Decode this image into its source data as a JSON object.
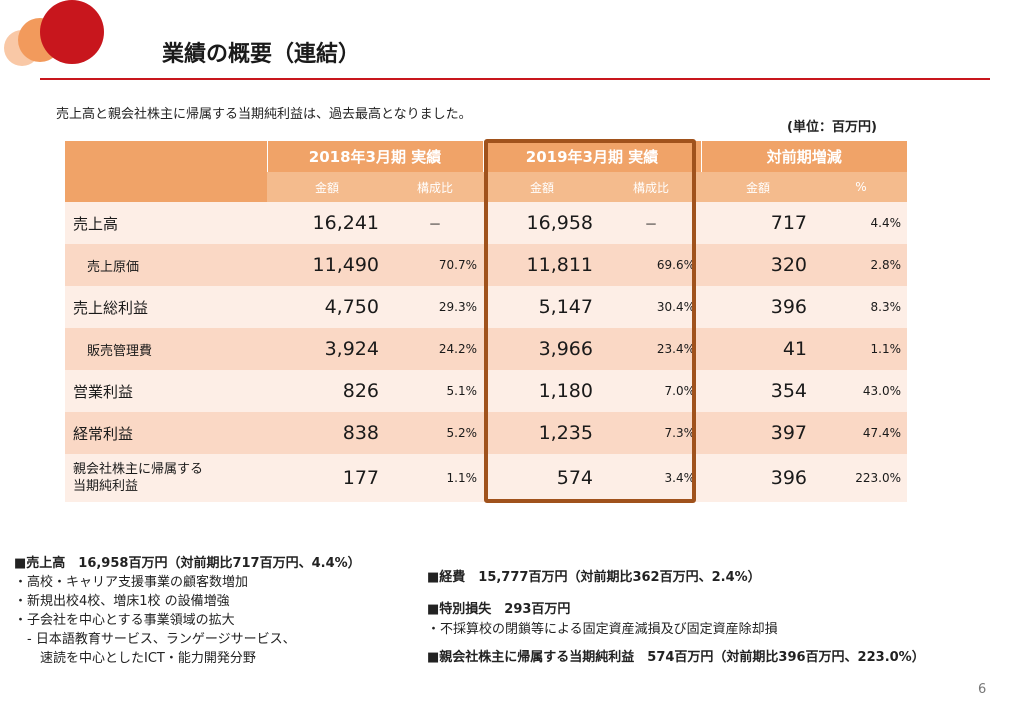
{
  "title": "業績の概要（連結）",
  "lead": "売上高と親会社株主に帰属する当期純利益は、過去最高となりました。",
  "unit": "(単位：百万円)",
  "table": {
    "groups": [
      "2018年3月期 実績",
      "2019年3月期 実績",
      "対前期増減"
    ],
    "subheaders": [
      "金額",
      "構成比",
      "金額",
      "構成比",
      "金額",
      "%"
    ],
    "rows": [
      {
        "label": "売上高",
        "a2018": "16,241",
        "p2018": "－",
        "a2019": "16,958",
        "p2019": "－",
        "diff": "717",
        "pct": "4.4%"
      },
      {
        "label": "売上原価",
        "a2018": "11,490",
        "p2018": "70.7%",
        "a2019": "11,811",
        "p2019": "69.6%",
        "diff": "320",
        "pct": "2.8%"
      },
      {
        "label": "売上総利益",
        "a2018": "4,750",
        "p2018": "29.3%",
        "a2019": "5,147",
        "p2019": "30.4%",
        "diff": "396",
        "pct": "8.3%"
      },
      {
        "label": "販売管理費",
        "a2018": "3,924",
        "p2018": "24.2%",
        "a2019": "3,966",
        "p2019": "23.4%",
        "diff": "41",
        "pct": "1.1%"
      },
      {
        "label": "営業利益",
        "a2018": "826",
        "p2018": "5.1%",
        "a2019": "1,180",
        "p2019": "7.0%",
        "diff": "354",
        "pct": "43.0%"
      },
      {
        "label": "経常利益",
        "a2018": "838",
        "p2018": "5.2%",
        "a2019": "1,235",
        "p2019": "7.3%",
        "diff": "397",
        "pct": "47.4%"
      },
      {
        "label_line1": "親会社株主に帰属する",
        "label_line2": "当期純利益",
        "a2018": "177",
        "p2018": "1.1%",
        "a2019": "574",
        "p2019": "3.4%",
        "diff": "396",
        "pct": "223.0%"
      }
    ]
  },
  "notes_left": [
    "■売上高　16,958百万円（対前期比717百万円、4.4%）",
    "・高校・キャリア支援事業の顧客数増加",
    "・新規出校4校、増床1校 の設備増強",
    "・子会社を中心とする事業領域の拡大",
    "　- 日本語教育サービス、ランゲージサービス、",
    "　　速読を中心としたICT・能力開発分野"
  ],
  "notes_right": {
    "expense": "■経費　15,777百万円（対前期比362百万円、2.4%）",
    "loss_title": "■特別損失　293百万円",
    "loss_detail": "・不採算校の閉鎖等による固定資産減損及び固定資産除却損",
    "net_income": "■親会社株主に帰属する当期純利益　574百万円（対前期比396百万円、223.0%）"
  },
  "page_number": "6",
  "colors": {
    "accent": "#c8161d",
    "header": "#f0a368",
    "subheader": "#f4bb8d",
    "highlight_border": "#a0521c"
  }
}
